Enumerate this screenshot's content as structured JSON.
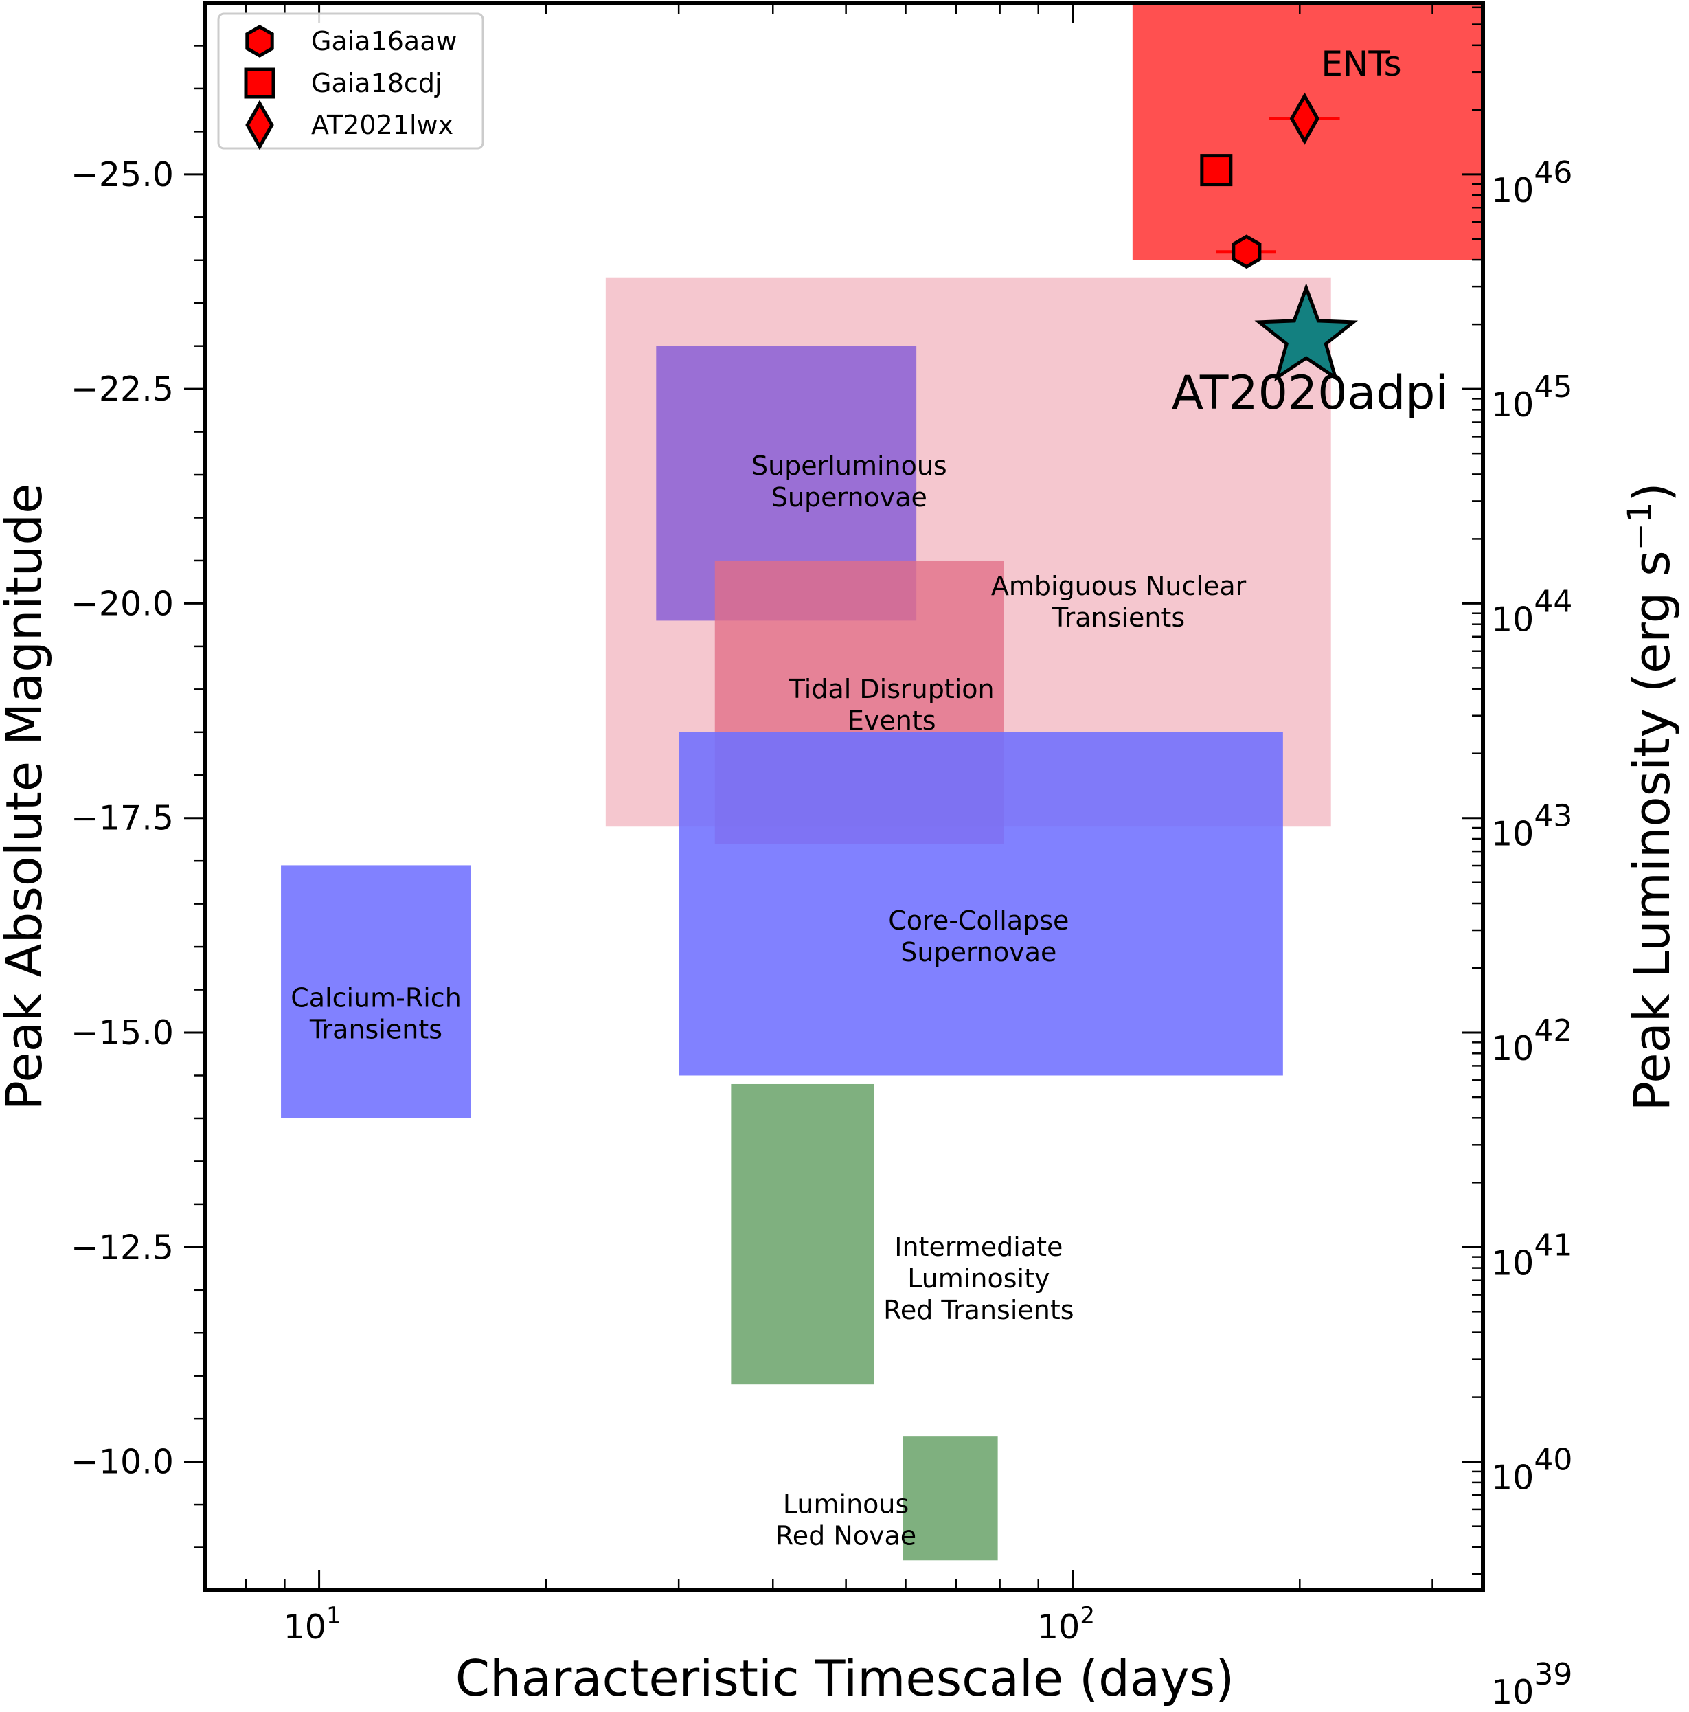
{
  "chart_data": {
    "type": "scatter",
    "title": "",
    "xlabel": "Characteristic Timescale (days)",
    "ylabel": "Peak Absolute Magnitude",
    "y2label": "Peak Luminosity (erg s⁻¹)",
    "xscale": "log",
    "xlim": [
      7.05,
      350
    ],
    "ylim": [
      -8.5,
      -27.0
    ],
    "y_inverted": true,
    "grid": false,
    "legend_position": "top-left",
    "colors": {
      "ent_region": "#ff5050",
      "ant_region": "#f5c7cf",
      "blue_region": "#7070ff",
      "purple_region": "#8a5fd6",
      "tde_region": "#e26e87",
      "green_region": "#7fb07f",
      "marker": "#ff0000",
      "star": "#138080"
    },
    "xticks": [
      {
        "value": 10,
        "base": "10",
        "exp": "1"
      },
      {
        "value": 100,
        "base": "10",
        "exp": "2"
      }
    ],
    "yticks": [
      {
        "value": -25.0,
        "label": "−25.0"
      },
      {
        "value": -22.5,
        "label": "−22.5"
      },
      {
        "value": -20.0,
        "label": "−20.0"
      },
      {
        "value": -17.5,
        "label": "−17.5"
      },
      {
        "value": -15.0,
        "label": "−15.0"
      },
      {
        "value": -12.5,
        "label": "−12.5"
      },
      {
        "value": -10.0,
        "label": "−10.0"
      }
    ],
    "y2ticks": [
      {
        "log_lum": 46,
        "base": "10",
        "exp": "46"
      },
      {
        "log_lum": 45,
        "base": "10",
        "exp": "45"
      },
      {
        "log_lum": 44,
        "base": "10",
        "exp": "44"
      },
      {
        "log_lum": 43,
        "base": "10",
        "exp": "43"
      },
      {
        "log_lum": 42,
        "base": "10",
        "exp": "42"
      },
      {
        "log_lum": 41,
        "base": "10",
        "exp": "41"
      },
      {
        "log_lum": 40,
        "base": "10",
        "exp": "40"
      },
      {
        "log_lum": 39,
        "base": "10",
        "exp": "39"
      }
    ],
    "regions": [
      {
        "name": "ENTs",
        "label_lines": [],
        "x_range": [
          120,
          350
        ],
        "y_range": [
          -24.0,
          -27.0
        ],
        "color_key": "ent_region"
      },
      {
        "name": "Ambiguous Nuclear Transients",
        "label_lines": [
          "Ambiguous Nuclear",
          "Transients"
        ],
        "label_at": [
          115,
          -20.1
        ],
        "x_range": [
          24,
          220
        ],
        "y_range": [
          -17.4,
          -23.8
        ],
        "color_key": "ant_region"
      },
      {
        "name": "Superluminous Supernovae",
        "label_lines": [
          "Superluminous",
          "Supernovae"
        ],
        "label_at": [
          50.5,
          -21.5
        ],
        "x_range": [
          28,
          62
        ],
        "y_range": [
          -19.8,
          -23.0
        ],
        "color_key": "purple_region",
        "opacity": 0.85
      },
      {
        "name": "Tidal Disruption Events",
        "label_lines": [
          "Tidal Disruption",
          "Events"
        ],
        "label_at": [
          57.5,
          -18.9
        ],
        "x_range": [
          33.5,
          81
        ],
        "y_range": [
          -17.2,
          -20.5
        ],
        "color_key": "tde_region",
        "opacity": 0.78
      },
      {
        "name": "Core-Collapse Supernovae",
        "label_lines": [
          "Core-Collapse",
          "Supernovae"
        ],
        "label_at": [
          75,
          -16.2
        ],
        "x_range": [
          30,
          190
        ],
        "y_range": [
          -14.5,
          -18.5
        ],
        "color_key": "blue_region",
        "opacity": 0.88
      },
      {
        "name": "Calcium-Rich Transients",
        "label_lines": [
          "Calcium-Rich",
          "Transients"
        ],
        "label_at": [
          11.9,
          -15.3
        ],
        "x_range": [
          8.9,
          15.9
        ],
        "y_range": [
          -14.0,
          -16.95
        ],
        "color_key": "blue_region",
        "opacity": 0.88
      },
      {
        "name": "Intermediate Luminosity Red Transients",
        "label_lines": [
          "Intermediate",
          "Luminosity",
          "Red Transients"
        ],
        "label_at": [
          75,
          -12.4
        ],
        "x_range": [
          35.2,
          54.5
        ],
        "y_range": [
          -10.9,
          -14.4
        ],
        "color_key": "green_region"
      },
      {
        "name": "Luminous Red Novae",
        "label_lines": [
          "Luminous",
          "Red Novae"
        ],
        "label_at": [
          50,
          -9.4
        ],
        "x_range": [
          59.5,
          79.5
        ],
        "y_range": [
          -8.85,
          -10.3
        ],
        "color_key": "green_region"
      }
    ],
    "series": [
      {
        "name": "Gaia16aaw",
        "marker": "hexagon",
        "x": 170,
        "y": -24.1,
        "xerr": [
          155,
          186
        ]
      },
      {
        "name": "Gaia18cdj",
        "marker": "square",
        "x": 155,
        "y": -25.05,
        "xerr": [
          149,
          162
        ]
      },
      {
        "name": "AT2021lwx",
        "marker": "diamond",
        "x": 203,
        "y": -25.65,
        "xerr": [
          182,
          226
        ]
      },
      {
        "name": "AT2020adpi",
        "marker": "star",
        "x": 204,
        "y": -23.1
      }
    ],
    "annotations": {
      "ents": "ENTs",
      "target": "AT2020adpi"
    },
    "legend": [
      "Gaia16aaw",
      "Gaia18cdj",
      "AT2021lwx"
    ]
  }
}
